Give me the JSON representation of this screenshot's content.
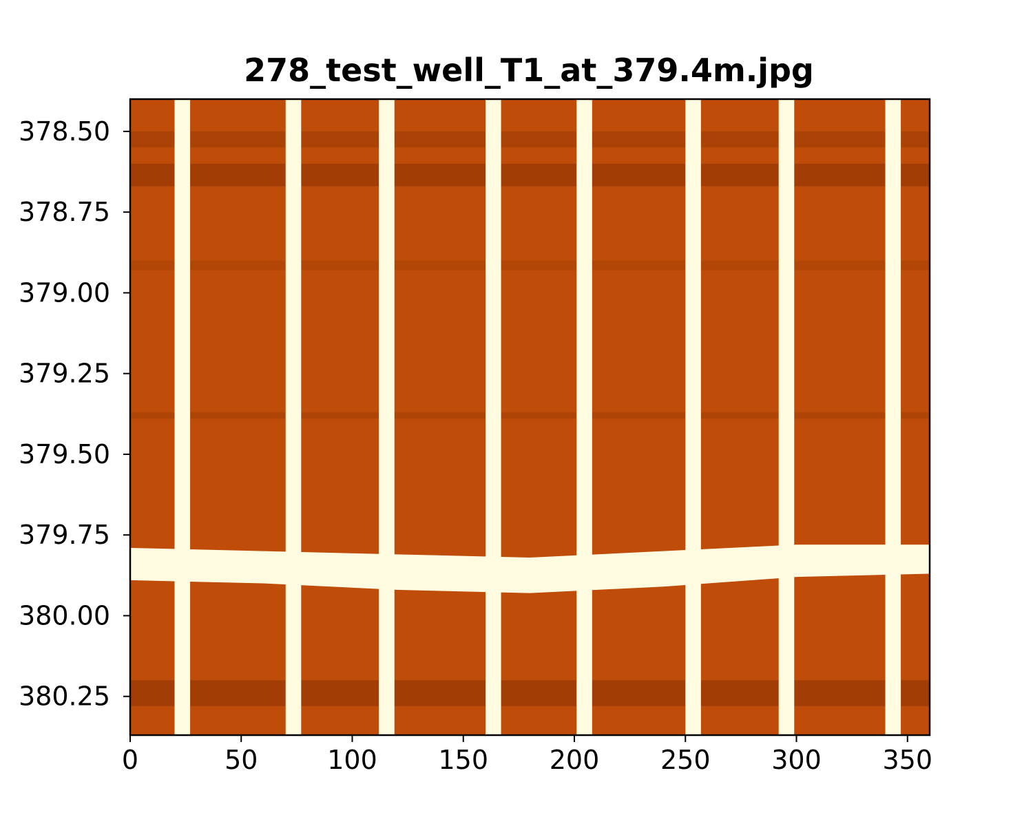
{
  "chart_data": {
    "type": "heatmap",
    "title": "278_test_well_T1_at_379.4m.jpg",
    "xlabel": "",
    "ylabel": "",
    "xlim": [
      0,
      360
    ],
    "ylim": [
      380.37,
      378.4
    ],
    "x_ticks": [
      0,
      50,
      100,
      150,
      200,
      250,
      300,
      350
    ],
    "x_tick_labels": [
      "0",
      "50",
      "100",
      "150",
      "200",
      "250",
      "300",
      "350"
    ],
    "y_ticks": [
      378.5,
      378.75,
      379.0,
      379.25,
      379.5,
      379.75,
      380.0,
      380.25
    ],
    "y_tick_labels": [
      "378.50",
      "378.75",
      "379.00",
      "379.25",
      "379.50",
      "379.75",
      "380.00",
      "380.25"
    ],
    "colormap": "copper",
    "colors": {
      "background": "#bf4d09",
      "dark_band": "#8a3203",
      "stripe": "#fffbe0",
      "frame": "#000000"
    },
    "vertical_stripes": [
      {
        "x": 20,
        "width": 7
      },
      {
        "x": 70,
        "width": 7
      },
      {
        "x": 112,
        "width": 7
      },
      {
        "x": 160,
        "width": 7
      },
      {
        "x": 201,
        "width": 7
      },
      {
        "x": 250,
        "width": 7
      },
      {
        "x": 292,
        "width": 7
      },
      {
        "x": 340,
        "width": 7
      }
    ],
    "horizontal_band": {
      "x": [
        0,
        60,
        120,
        180,
        240,
        300,
        360
      ],
      "top": [
        379.79,
        379.8,
        379.81,
        379.82,
        379.8,
        379.78,
        379.78
      ],
      "bottom": [
        379.89,
        379.9,
        379.92,
        379.93,
        379.91,
        379.88,
        379.87
      ]
    },
    "dark_bands": [
      {
        "y_from": 378.5,
        "y_to": 378.55,
        "opacity": 0.35
      },
      {
        "y_from": 378.6,
        "y_to": 378.67,
        "opacity": 0.55
      },
      {
        "y_from": 378.9,
        "y_to": 378.93,
        "opacity": 0.25
      },
      {
        "y_from": 379.37,
        "y_to": 379.39,
        "opacity": 0.3
      },
      {
        "y_from": 380.2,
        "y_to": 380.28,
        "opacity": 0.55
      }
    ]
  }
}
